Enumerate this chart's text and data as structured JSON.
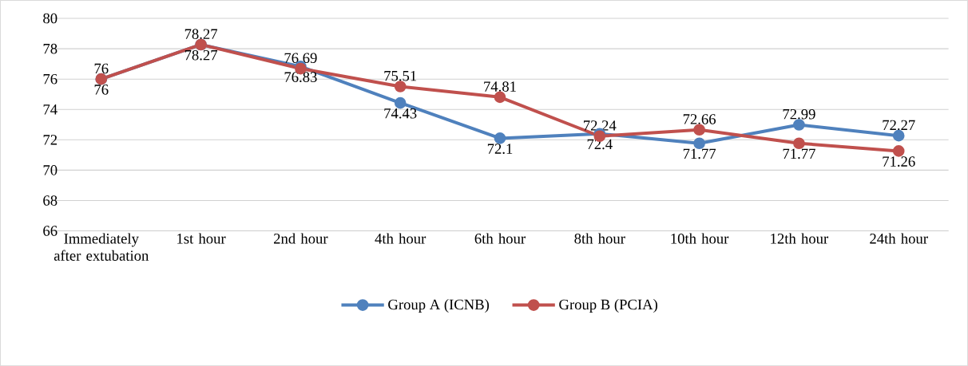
{
  "chart_data": {
    "type": "line",
    "categories": [
      "Immediately after extubation",
      "1st hour",
      "2nd hour",
      "4th hour",
      "6th hour",
      "8th hour",
      "10th hour",
      "12th hour",
      "24th hour"
    ],
    "series": [
      {
        "name": "Group A (ICNB)",
        "color": "#4f81bd",
        "values": [
          76,
          78.27,
          76.83,
          74.43,
          72.1,
          72.4,
          71.77,
          72.99,
          72.27
        ]
      },
      {
        "name": "Group B (PCIA)",
        "color": "#c0504d",
        "values": [
          76,
          78.27,
          76.69,
          75.51,
          74.81,
          72.24,
          72.66,
          71.77,
          71.26
        ]
      }
    ],
    "ylim": [
      66,
      80
    ],
    "yticks": [
      66,
      68,
      70,
      72,
      74,
      76,
      78,
      80
    ],
    "grid": "y",
    "legend": "bottom",
    "marker": "circle",
    "line_style": "solid",
    "data_labels": true
  }
}
